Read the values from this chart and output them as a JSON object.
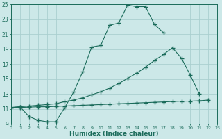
{
  "xlabel": "Humidex (Indice chaleur)",
  "bg_color": "#cce8e8",
  "grid_color": "#aacfcf",
  "line_color": "#1a6b5a",
  "xmin": 0,
  "xmax": 23,
  "ymin": 9,
  "ymax": 25,
  "yticks": [
    9,
    11,
    13,
    15,
    17,
    19,
    21,
    23,
    25
  ],
  "curve1_x": [
    0,
    1,
    2,
    3,
    4,
    5,
    6,
    7,
    8,
    9,
    10,
    11,
    12,
    13,
    14,
    15,
    16,
    17,
    18,
    19
  ],
  "curve1_y": [
    11.2,
    11.3,
    10.0,
    9.5,
    9.3,
    9.3,
    11.2,
    13.3,
    16.0,
    19.3,
    19.5,
    22.2,
    22.5,
    24.9,
    24.7,
    24.7,
    22.3,
    21.2,
    null,
    null
  ],
  "curve2_x": [
    0,
    1,
    2,
    3,
    4,
    5,
    6,
    7,
    8,
    9,
    10,
    11,
    12,
    13,
    14,
    15,
    16,
    17,
    18,
    19,
    20,
    21,
    22
  ],
  "curve2_y": [
    11.2,
    11.3,
    11.4,
    11.5,
    11.6,
    11.7,
    12.0,
    12.2,
    12.5,
    12.9,
    13.3,
    13.8,
    14.4,
    15.1,
    15.8,
    16.6,
    17.5,
    18.3,
    19.2,
    17.8,
    15.5,
    13.0,
    null
  ],
  "curve3_x": [
    0,
    1,
    2,
    3,
    4,
    5,
    6,
    7,
    8,
    9,
    10,
    11,
    12,
    13,
    14,
    15,
    16,
    17,
    18,
    19,
    20,
    21,
    22
  ],
  "curve3_y": [
    11.2,
    11.2,
    11.25,
    11.3,
    11.3,
    11.35,
    11.4,
    11.45,
    11.5,
    11.55,
    11.6,
    11.65,
    11.7,
    11.75,
    11.8,
    11.85,
    11.9,
    11.95,
    12.0,
    12.05,
    12.05,
    12.1,
    12.2
  ]
}
